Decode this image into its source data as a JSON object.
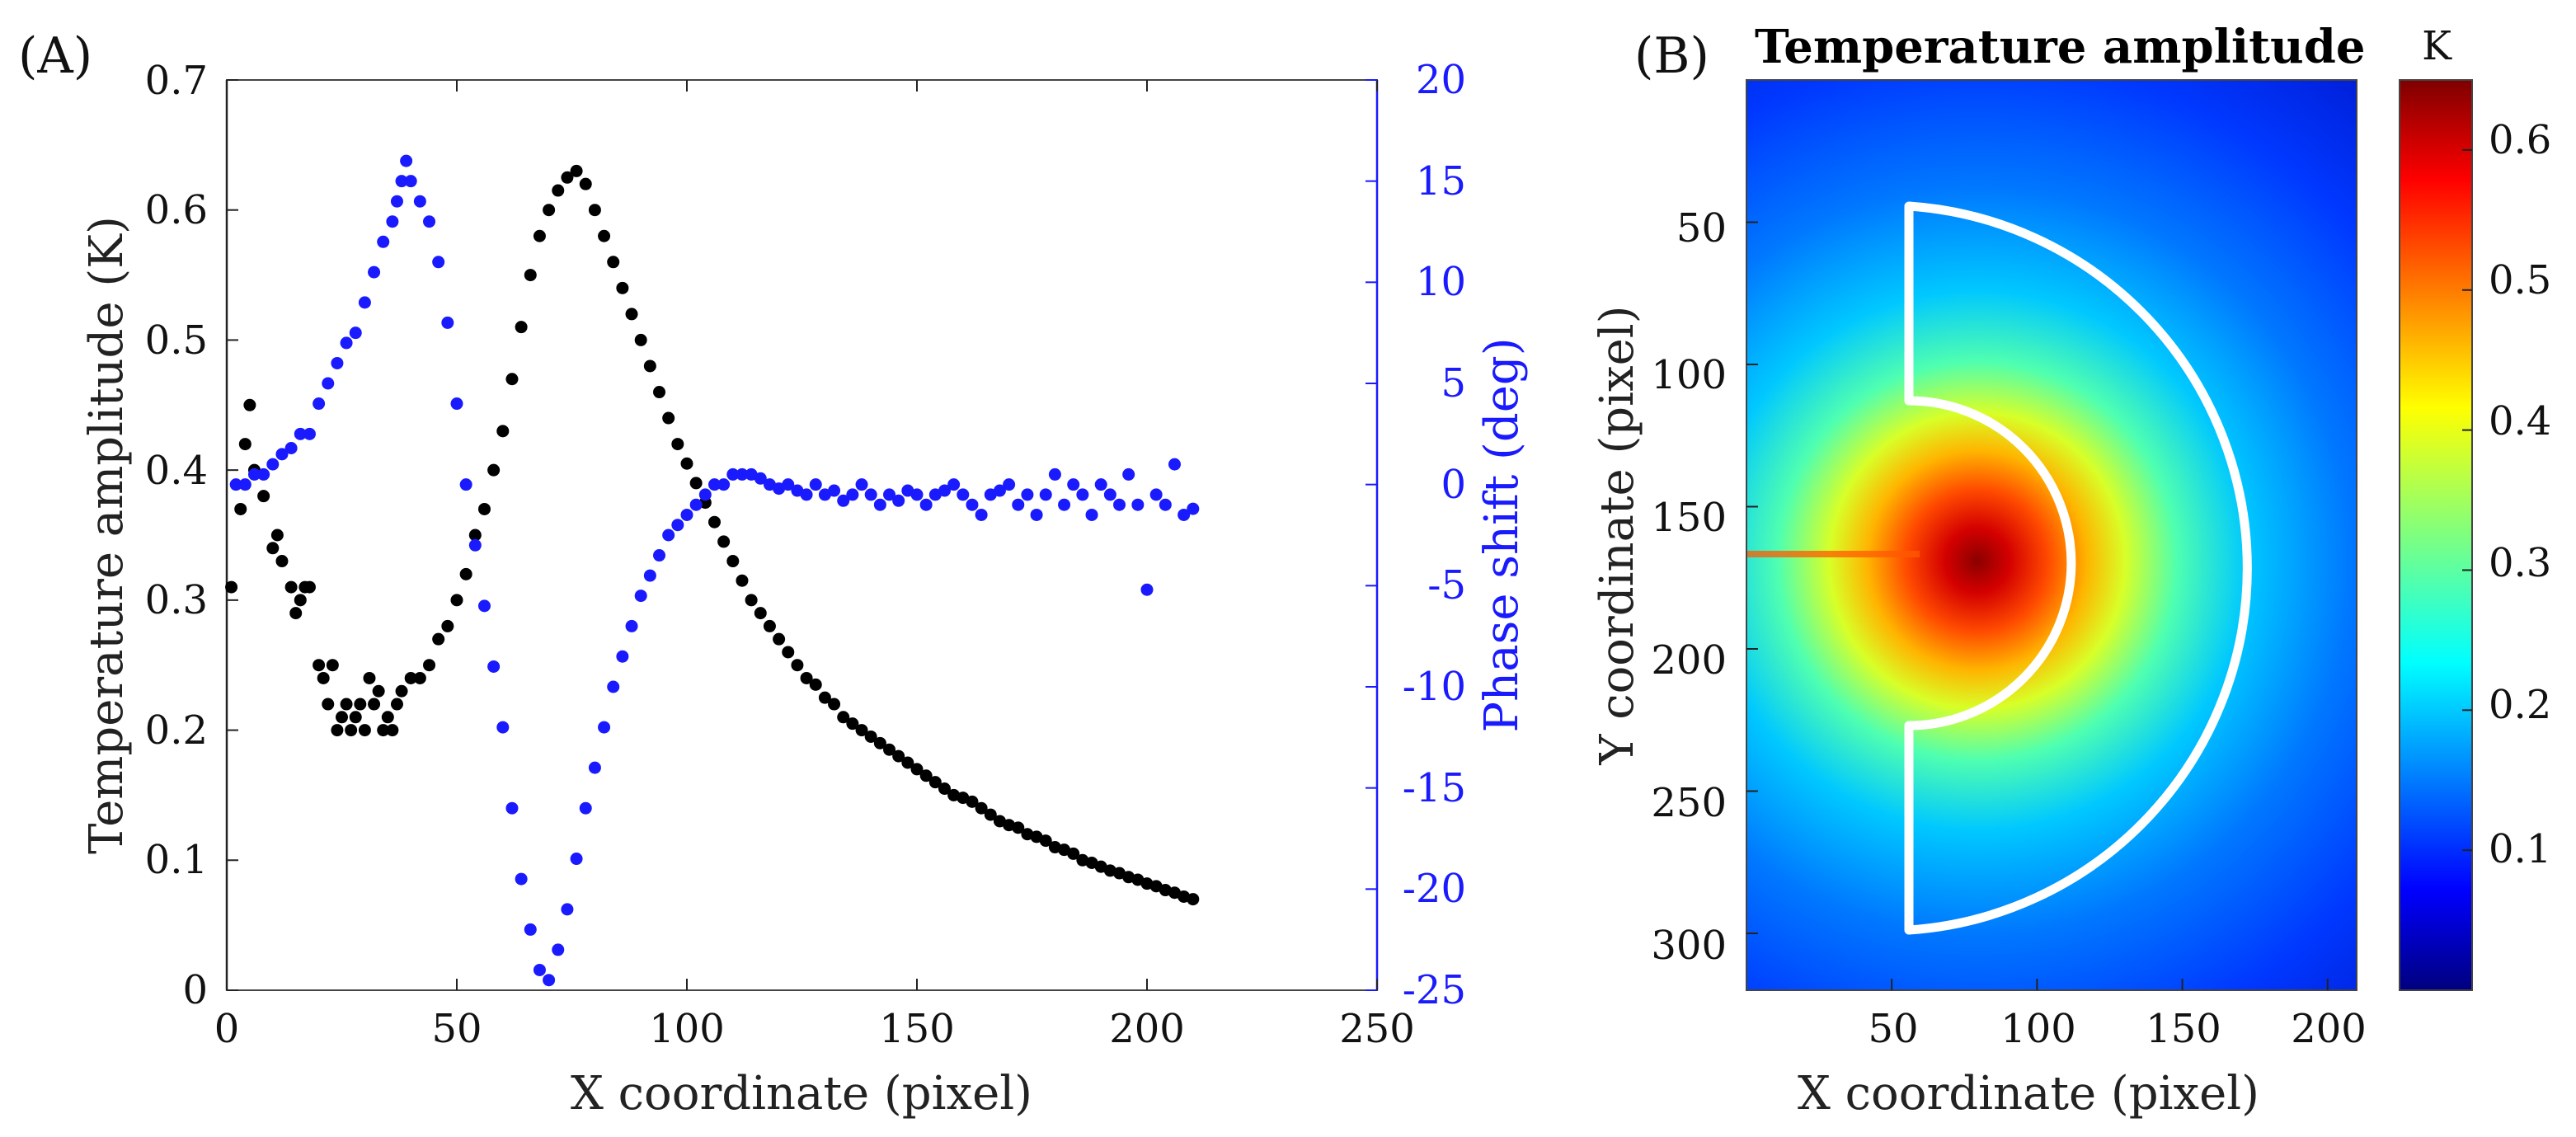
{
  "panel_a": {
    "label": "(A)",
    "xlabel": "X coordinate (pixel)",
    "ylabel_left": "Temperature amplitude (K)",
    "ylabel_right": "Phase shift (deg)",
    "xticks": [
      "0",
      "50",
      "100",
      "150",
      "200",
      "250"
    ],
    "yticks_left": [
      "0",
      "0.1",
      "0.2",
      "0.3",
      "0.4",
      "0.5",
      "0.6",
      "0.7"
    ],
    "yticks_right": [
      "-25",
      "-20",
      "-15",
      "-10",
      "-5",
      "0",
      "5",
      "10",
      "15",
      "20"
    ]
  },
  "panel_b": {
    "label": "(B)",
    "title": "Temperature amplitude",
    "colorbar_unit": "K",
    "xlabel": "X coordinate (pixel)",
    "ylabel": "Y coordinate (pixel)",
    "xticks": [
      "50",
      "100",
      "150",
      "200"
    ],
    "yticks": [
      "50",
      "100",
      "150",
      "200",
      "250",
      "300"
    ],
    "colorbar_ticks": [
      "0.1",
      "0.2",
      "0.3",
      "0.4",
      "0.5",
      "0.6"
    ]
  },
  "chart_data": [
    {
      "type": "scatter",
      "xlim": [
        0,
        250
      ],
      "ylim_left": [
        0,
        0.7
      ],
      "ylim_right": [
        -25,
        20
      ],
      "grid": false,
      "series": [
        {
          "axis": "left",
          "color": "#000000",
          "x": [
            1,
            3,
            4,
            5,
            6,
            8,
            10,
            11,
            12,
            14,
            15,
            16,
            17,
            18,
            20,
            21,
            22,
            23,
            24,
            25,
            26,
            27,
            28,
            29,
            30,
            31,
            32,
            33,
            34,
            35,
            36,
            37,
            38,
            40,
            42,
            44,
            46,
            48,
            50,
            52,
            54,
            56,
            58,
            60,
            62,
            64,
            66,
            68,
            70,
            72,
            74,
            76,
            78,
            80,
            82,
            84,
            86,
            88,
            90,
            92,
            94,
            96,
            98,
            100,
            102,
            104,
            106,
            108,
            110,
            112,
            114,
            116,
            118,
            120,
            122,
            124,
            126,
            128,
            130,
            132,
            134,
            136,
            138,
            140,
            142,
            144,
            146,
            148,
            150,
            152,
            154,
            156,
            158,
            160,
            162,
            164,
            166,
            168,
            170,
            172,
            174,
            176,
            178,
            180,
            182,
            184,
            186,
            188,
            190,
            192,
            194,
            196,
            198,
            200,
            202,
            204,
            206,
            208,
            210
          ],
          "y": [
            0.31,
            0.37,
            0.42,
            0.45,
            0.4,
            0.38,
            0.34,
            0.35,
            0.33,
            0.31,
            0.29,
            0.3,
            0.31,
            0.31,
            0.25,
            0.24,
            0.22,
            0.25,
            0.2,
            0.21,
            0.22,
            0.2,
            0.21,
            0.22,
            0.2,
            0.24,
            0.22,
            0.23,
            0.2,
            0.21,
            0.2,
            0.22,
            0.23,
            0.24,
            0.24,
            0.25,
            0.27,
            0.28,
            0.3,
            0.32,
            0.35,
            0.37,
            0.4,
            0.43,
            0.47,
            0.51,
            0.55,
            0.58,
            0.6,
            0.615,
            0.625,
            0.63,
            0.62,
            0.6,
            0.58,
            0.56,
            0.54,
            0.52,
            0.5,
            0.48,
            0.46,
            0.44,
            0.42,
            0.405,
            0.39,
            0.375,
            0.36,
            0.345,
            0.33,
            0.315,
            0.3,
            0.29,
            0.28,
            0.27,
            0.26,
            0.25,
            0.24,
            0.235,
            0.225,
            0.22,
            0.21,
            0.205,
            0.2,
            0.195,
            0.19,
            0.185,
            0.18,
            0.175,
            0.17,
            0.165,
            0.16,
            0.155,
            0.15,
            0.148,
            0.145,
            0.14,
            0.135,
            0.13,
            0.127,
            0.125,
            0.12,
            0.118,
            0.115,
            0.11,
            0.108,
            0.105,
            0.1,
            0.098,
            0.095,
            0.092,
            0.09,
            0.087,
            0.085,
            0.082,
            0.08,
            0.077,
            0.075,
            0.072,
            0.07
          ]
        },
        {
          "axis": "right",
          "color": "#1a1aff",
          "x": [
            2,
            4,
            6,
            8,
            10,
            12,
            14,
            16,
            18,
            20,
            22,
            24,
            26,
            28,
            30,
            32,
            34,
            36,
            37,
            38,
            39,
            40,
            42,
            44,
            46,
            48,
            50,
            52,
            54,
            56,
            58,
            60,
            62,
            64,
            66,
            68,
            70,
            72,
            74,
            76,
            78,
            80,
            82,
            84,
            86,
            88,
            90,
            92,
            94,
            96,
            98,
            100,
            102,
            104,
            106,
            108,
            110,
            112,
            114,
            116,
            118,
            120,
            122,
            124,
            126,
            128,
            130,
            132,
            134,
            136,
            138,
            140,
            142,
            144,
            146,
            148,
            150,
            152,
            154,
            156,
            158,
            160,
            162,
            164,
            166,
            168,
            170,
            172,
            174,
            176,
            178,
            180,
            182,
            184,
            186,
            188,
            190,
            192,
            194,
            196,
            198,
            200,
            202,
            204,
            206,
            208,
            210
          ],
          "y": [
            0,
            0,
            0.5,
            0.5,
            1,
            1.5,
            1.8,
            2.5,
            2.5,
            4,
            5,
            6,
            7,
            7.5,
            9,
            10.5,
            12,
            13,
            14,
            15,
            16,
            15,
            14,
            13,
            11,
            8,
            4,
            0,
            -3,
            -6,
            -9,
            -12,
            -16,
            -19.5,
            -22,
            -24,
            -24.5,
            -23,
            -21,
            -18.5,
            -16,
            -14,
            -12,
            -10,
            -8.5,
            -7,
            -5.5,
            -4.5,
            -3.5,
            -2.5,
            -2,
            -1.5,
            -1,
            -0.5,
            0,
            0,
            0.5,
            0.5,
            0.5,
            0.3,
            0,
            -0.2,
            0,
            -0.3,
            -0.5,
            0,
            -0.5,
            -0.3,
            -0.8,
            -0.5,
            0,
            -0.5,
            -1,
            -0.5,
            -0.8,
            -0.3,
            -0.5,
            -1,
            -0.5,
            -0.3,
            0,
            -0.5,
            -1,
            -1.5,
            -0.5,
            -0.3,
            0,
            -1,
            -0.5,
            -1.5,
            -0.5,
            0.5,
            -1,
            0,
            -0.5,
            -1.5,
            0,
            -0.5,
            -1,
            0.5,
            -1,
            -5.2,
            -0.5,
            -1,
            1,
            -1.5,
            -1.2
          ]
        }
      ]
    },
    {
      "type": "heatmap",
      "xlim": [
        0,
        210
      ],
      "ylim": [
        0,
        320
      ],
      "y_reversed": true,
      "colormap": "jet",
      "clim": [
        0,
        0.65
      ],
      "hotspot": {
        "x": 78,
        "y": 167,
        "peak": 0.65
      },
      "outline_color": "#ffffff"
    }
  ]
}
